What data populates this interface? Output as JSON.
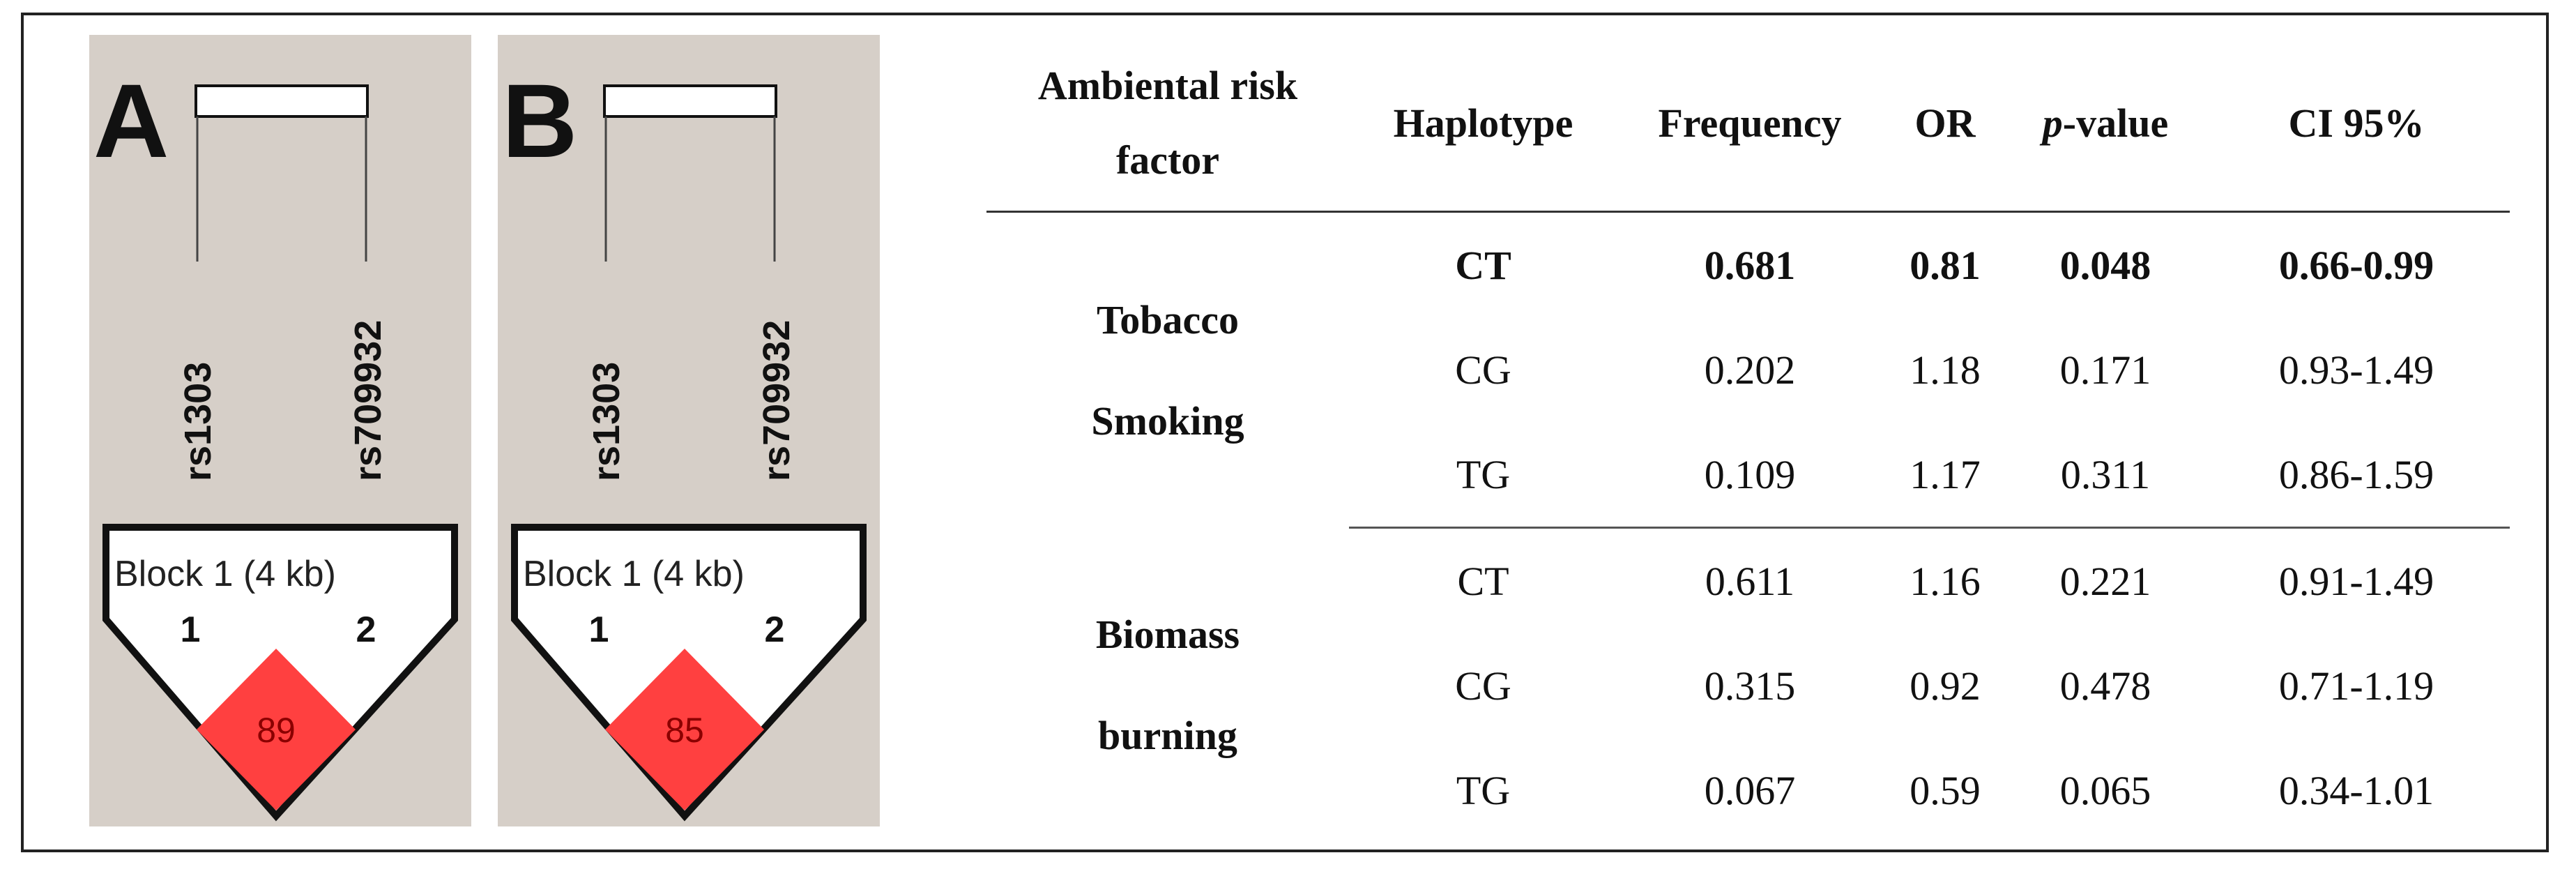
{
  "panels": [
    {
      "letter": "A",
      "snps": [
        "rs1303",
        "rs709932"
      ],
      "block_label": "Block 1 (4 kb)",
      "markers": [
        "1",
        "2"
      ],
      "ld_value": "89"
    },
    {
      "letter": "B",
      "snps": [
        "rs1303",
        "rs709932"
      ],
      "block_label": "Block 1 (4 kb)",
      "markers": [
        "1",
        "2"
      ],
      "ld_value": "85"
    }
  ],
  "colors": {
    "panel_bg": "#d6cfc8",
    "ld_cell": "#ff4040",
    "border": "#222222"
  },
  "table": {
    "headers": {
      "factor_line1": "Ambiental risk",
      "factor_line2": "factor",
      "haplotype": "Haplotype",
      "frequency": "Frequency",
      "or": "OR",
      "p_italic": "p",
      "p_rest": "-value",
      "ci": "CI 95%"
    },
    "groups": [
      {
        "factor_line1": "Tobacco",
        "factor_line2": "Smoking",
        "rows": [
          {
            "haplotype": "CT",
            "frequency": "0.681",
            "or": "0.81",
            "p": "0.048",
            "ci": "0.66-0.99",
            "bold": true
          },
          {
            "haplotype": "CG",
            "frequency": "0.202",
            "or": "1.18",
            "p": "0.171",
            "ci": "0.93-1.49",
            "bold": false
          },
          {
            "haplotype": "TG",
            "frequency": "0.109",
            "or": "1.17",
            "p": "0.311",
            "ci": "0.86-1.59",
            "bold": false
          }
        ]
      },
      {
        "factor_line1": "Biomass",
        "factor_line2": "burning",
        "rows": [
          {
            "haplotype": "CT",
            "frequency": "0.611",
            "or": "1.16",
            "p": "0.221",
            "ci": "0.91-1.49",
            "bold": false
          },
          {
            "haplotype": "CG",
            "frequency": "0.315",
            "or": "0.92",
            "p": "0.478",
            "ci": "0.71-1.19",
            "bold": false
          },
          {
            "haplotype": "TG",
            "frequency": "0.067",
            "or": "0.59",
            "p": "0.065",
            "ci": "0.34-1.01",
            "bold": false
          }
        ]
      }
    ]
  }
}
